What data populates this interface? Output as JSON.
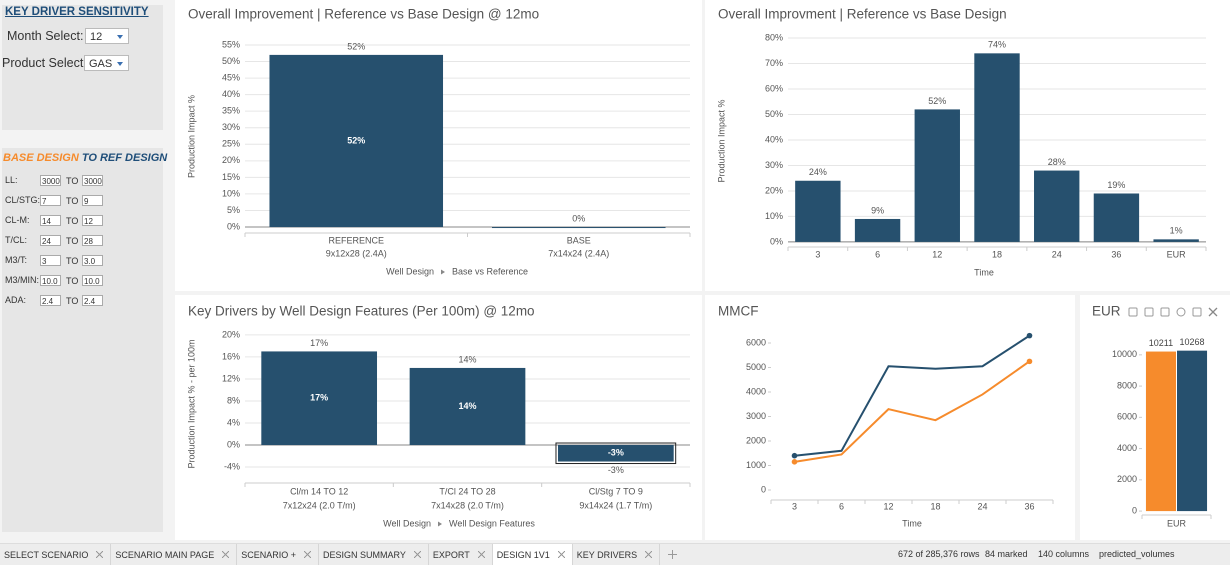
{
  "sidebar": {
    "title": "KEY DRIVER SENSITIVITY",
    "month_label": "Month Select:",
    "month_value": "12",
    "product_label": "Product Select:",
    "product_value": "GAS"
  },
  "design": {
    "base": "BASE DESIGN",
    "ref": "TO REF DESIGN",
    "connector": "TO",
    "rows": [
      [
        "LL:",
        "3000",
        "3000"
      ],
      [
        "CL/STG:",
        "7",
        "9"
      ],
      [
        "CL-M:",
        "14",
        "12"
      ],
      [
        "T/CL:",
        "24",
        "28"
      ],
      [
        "M3/T:",
        "3",
        "3.0"
      ],
      [
        "M3/MIN:",
        "10.0",
        "10.0"
      ],
      [
        "ADA:",
        "2.4",
        "2.4"
      ]
    ]
  },
  "chart_data": [
    {
      "type": "bar",
      "title": "Overall Improvement | Reference vs Base Design @ 12mo",
      "y_label": "Production Impact %",
      "categories": [
        "REFERENCE",
        "BASE"
      ],
      "category_details": [
        "9x12x28 (2.4A)",
        "7x14x24 (2.4A)"
      ],
      "values": [
        52,
        0
      ],
      "value_labels": [
        "52%",
        "0%"
      ],
      "inside_labels": true,
      "color": "#26506e",
      "ylim": [
        -1.8,
        56.5
      ],
      "yticks": [
        {
          "value": 0,
          "label": "0%"
        },
        {
          "value": 5,
          "label": "5%"
        },
        {
          "value": 10,
          "label": "10%"
        },
        {
          "value": 15,
          "label": "15%"
        },
        {
          "value": 20,
          "label": "20%"
        },
        {
          "value": 25,
          "label": "25%"
        },
        {
          "value": 30,
          "label": "30%"
        },
        {
          "value": 35,
          "label": "35%"
        },
        {
          "value": 40,
          "label": "40%"
        },
        {
          "value": 45,
          "label": "45%"
        },
        {
          "value": 50,
          "label": "50%"
        },
        {
          "value": 55,
          "label": "55%"
        }
      ],
      "x_label": "Well Design",
      "x_label_detail": "Base vs Reference",
      "grid": true
    },
    {
      "type": "bar",
      "title": "Overall Improvment | Reference vs Base Design",
      "y_label": "Production Impact %",
      "categories": [
        "3",
        "6",
        "12",
        "18",
        "24",
        "36",
        "EUR"
      ],
      "values": [
        24,
        9,
        52,
        74,
        28,
        19,
        1
      ],
      "value_labels": [
        "24%",
        "9%",
        "52%",
        "74%",
        "28%",
        "19%",
        "1%"
      ],
      "color": "#26506e",
      "ylim": [
        -2,
        81.2
      ],
      "yticks": [
        {
          "value": 0,
          "label": "0%"
        },
        {
          "value": 10,
          "label": "10%"
        },
        {
          "value": 20,
          "label": "20%"
        },
        {
          "value": 30,
          "label": "30%"
        },
        {
          "value": 40,
          "label": "40%"
        },
        {
          "value": 50,
          "label": "50%"
        },
        {
          "value": 60,
          "label": "60%"
        },
        {
          "value": 70,
          "label": "70%"
        },
        {
          "value": 80,
          "label": "80%"
        }
      ],
      "x_label": "Time",
      "grid": true
    },
    {
      "type": "bar",
      "title": "Key Drivers by Well Design Features (Per 100m) @ 12mo",
      "y_label": "Production Impact % - per 100m",
      "categories": [
        "Cl/m 14 TO 12",
        "T/Cl 24 TO 28",
        "Cl/Stg 7 TO 9"
      ],
      "category_details": [
        "7x12x24 (2.0 T/m)",
        "7x14x28 (2.0 T/m)",
        "9x14x24 (1.7 T/m)"
      ],
      "values": [
        17,
        14,
        -3
      ],
      "value_labels": [
        "17%",
        "14%",
        "-3%"
      ],
      "inside_labels": true,
      "selected_index": 2,
      "color": "#26506e",
      "ylim": [
        -6.9,
        21.8
      ],
      "yticks": [
        {
          "value": -4,
          "label": "-4%"
        },
        {
          "value": 0,
          "label": "0%"
        },
        {
          "value": 4,
          "label": "4%"
        },
        {
          "value": 8,
          "label": "8%"
        },
        {
          "value": 12,
          "label": "12%"
        },
        {
          "value": 16,
          "label": "16%"
        },
        {
          "value": 20,
          "label": "20%"
        }
      ],
      "x_label": "Well Design",
      "x_label_detail": "Well Design Features",
      "grid": true
    },
    {
      "type": "line",
      "title": "MMCF",
      "categories": [
        "3",
        "6",
        "12",
        "18",
        "24",
        "36"
      ],
      "series": [
        {
          "color": "#26506e",
          "values": [
            1400,
            1600,
            5050,
            4950,
            5050,
            6300
          ]
        },
        {
          "color": "#f68b2c",
          "values": [
            1150,
            1450,
            3300,
            2850,
            3900,
            5250
          ]
        }
      ],
      "ylim": [
        -408,
        6530
      ],
      "yticks": [
        0,
        1000,
        2000,
        3000,
        4000,
        5000,
        6000
      ],
      "x_label": "Time",
      "grid": false
    },
    {
      "type": "bar",
      "title": "EUR",
      "categories": [
        "EUR"
      ],
      "series": [
        {
          "color": "#f68b2c",
          "values": [
            10211
          ]
        },
        {
          "color": "#26506e",
          "values": [
            10268
          ]
        }
      ],
      "ylim": [
        -250,
        10950
      ],
      "yticks": [
        0,
        2000,
        4000,
        6000,
        8000,
        10000
      ],
      "grid": false
    }
  ],
  "tabs": {
    "items": [
      "SELECT SCENARIO",
      "SCENARIO MAIN PAGE",
      "SCENARIO +",
      "DESIGN SUMMARY",
      "EXPORT",
      "DESIGN 1V1",
      "KEY DRIVERS"
    ],
    "active": 5
  },
  "status": {
    "rows": "672 of 285,376 rows",
    "marked": "84 marked",
    "columns": "140 columns",
    "column_name": "predicted_volumes"
  }
}
